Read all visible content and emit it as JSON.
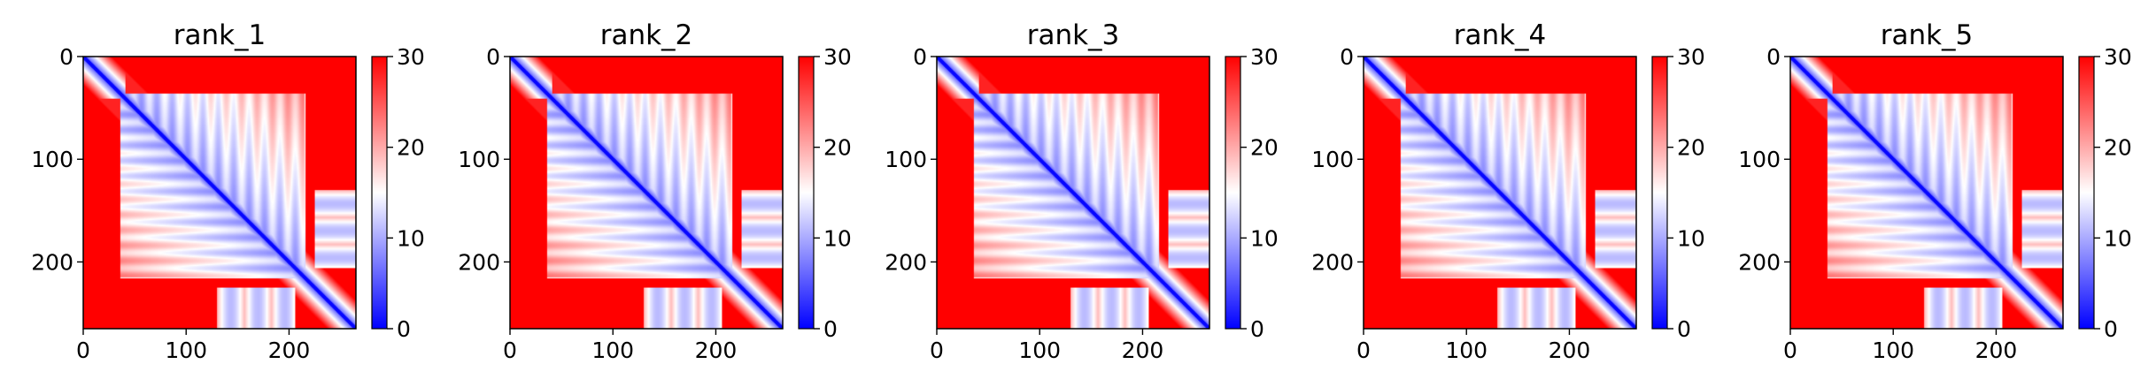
{
  "chart_data": [
    {
      "type": "heatmap",
      "title": "rank_1",
      "x_ticks": [
        0,
        100,
        200
      ],
      "y_ticks": [
        0,
        100,
        200
      ],
      "xlim": [
        0,
        265
      ],
      "ylim": [
        265,
        0
      ],
      "colorbar": {
        "ticks": [
          0,
          10,
          20,
          30
        ],
        "range": [
          0,
          30
        ],
        "colors": [
          "#0000ff",
          "#ffffff",
          "#ff0000"
        ]
      }
    },
    {
      "type": "heatmap",
      "title": "rank_2",
      "x_ticks": [
        0,
        100,
        200
      ],
      "y_ticks": [
        0,
        100,
        200
      ],
      "xlim": [
        0,
        265
      ],
      "ylim": [
        265,
        0
      ],
      "colorbar": {
        "ticks": [
          0,
          10,
          20,
          30
        ],
        "range": [
          0,
          30
        ],
        "colors": [
          "#0000ff",
          "#ffffff",
          "#ff0000"
        ]
      }
    },
    {
      "type": "heatmap",
      "title": "rank_3",
      "x_ticks": [
        0,
        100,
        200
      ],
      "y_ticks": [
        0,
        100,
        200
      ],
      "xlim": [
        0,
        265
      ],
      "ylim": [
        265,
        0
      ],
      "colorbar": {
        "ticks": [
          0,
          10,
          20,
          30
        ],
        "range": [
          0,
          30
        ],
        "colors": [
          "#0000ff",
          "#ffffff",
          "#ff0000"
        ]
      }
    },
    {
      "type": "heatmap",
      "title": "rank_4",
      "x_ticks": [
        0,
        100,
        200
      ],
      "y_ticks": [
        0,
        100,
        200
      ],
      "xlim": [
        0,
        265
      ],
      "ylim": [
        265,
        0
      ],
      "colorbar": {
        "ticks": [
          0,
          10,
          20,
          30
        ],
        "range": [
          0,
          30
        ],
        "colors": [
          "#0000ff",
          "#ffffff",
          "#ff0000"
        ]
      }
    },
    {
      "type": "heatmap",
      "title": "rank_5",
      "x_ticks": [
        0,
        100,
        200
      ],
      "y_ticks": [
        0,
        100,
        200
      ],
      "xlim": [
        0,
        265
      ],
      "ylim": [
        265,
        0
      ],
      "colorbar": {
        "ticks": [
          0,
          10,
          20,
          30
        ],
        "range": [
          0,
          30
        ],
        "colors": [
          "#0000ff",
          "#ffffff",
          "#ff0000"
        ]
      }
    }
  ]
}
